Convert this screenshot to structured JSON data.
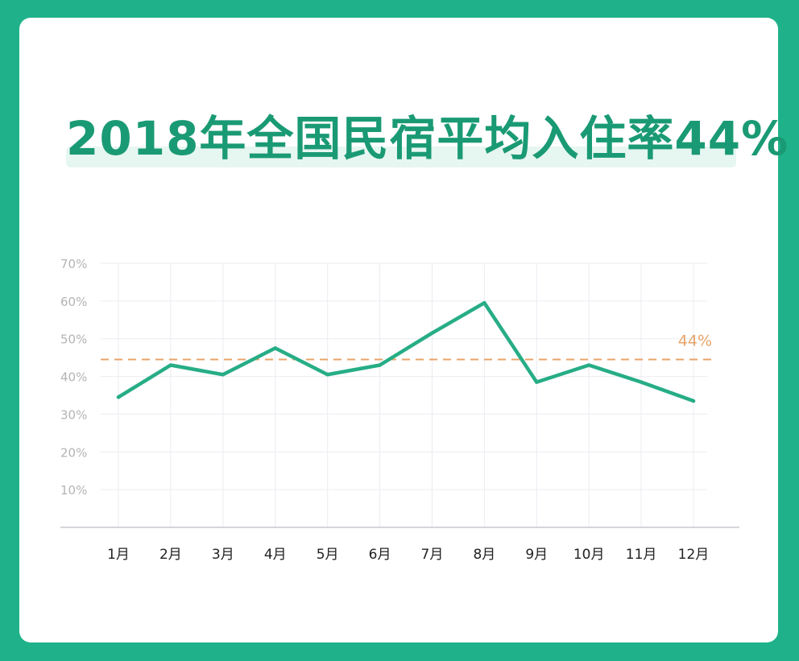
{
  "title": "2018年全国民宿平均入住率44%",
  "colors": {
    "frame": "#1fb28a",
    "line": "#27ad86",
    "reference": "#e8a46a",
    "grid": "#ececf2",
    "tick": "#b4b4b4",
    "category": "#222222",
    "title": "#1a9a74"
  },
  "chart_data": {
    "type": "line",
    "title": "2018年全国民宿平均入住率44%",
    "xlabel": "",
    "ylabel": "",
    "categories": [
      "1月",
      "2月",
      "3月",
      "4月",
      "5月",
      "6月",
      "7月",
      "8月",
      "9月",
      "10月",
      "11月",
      "12月"
    ],
    "series": [
      {
        "values": [
          34.5,
          43,
          40.5,
          47.5,
          40.5,
          43,
          51.5,
          59.5,
          38.5,
          43,
          38.5,
          33.5
        ]
      }
    ],
    "y_ticks": [
      "10%",
      "20%",
      "30%",
      "40%",
      "50%",
      "60%",
      "70%"
    ],
    "y_tick_values": [
      10,
      20,
      30,
      40,
      50,
      60,
      70
    ],
    "ylim": [
      0,
      70
    ],
    "grid": true,
    "reference_line": {
      "value": 44.5,
      "label": "44%",
      "style": "dashed"
    }
  }
}
